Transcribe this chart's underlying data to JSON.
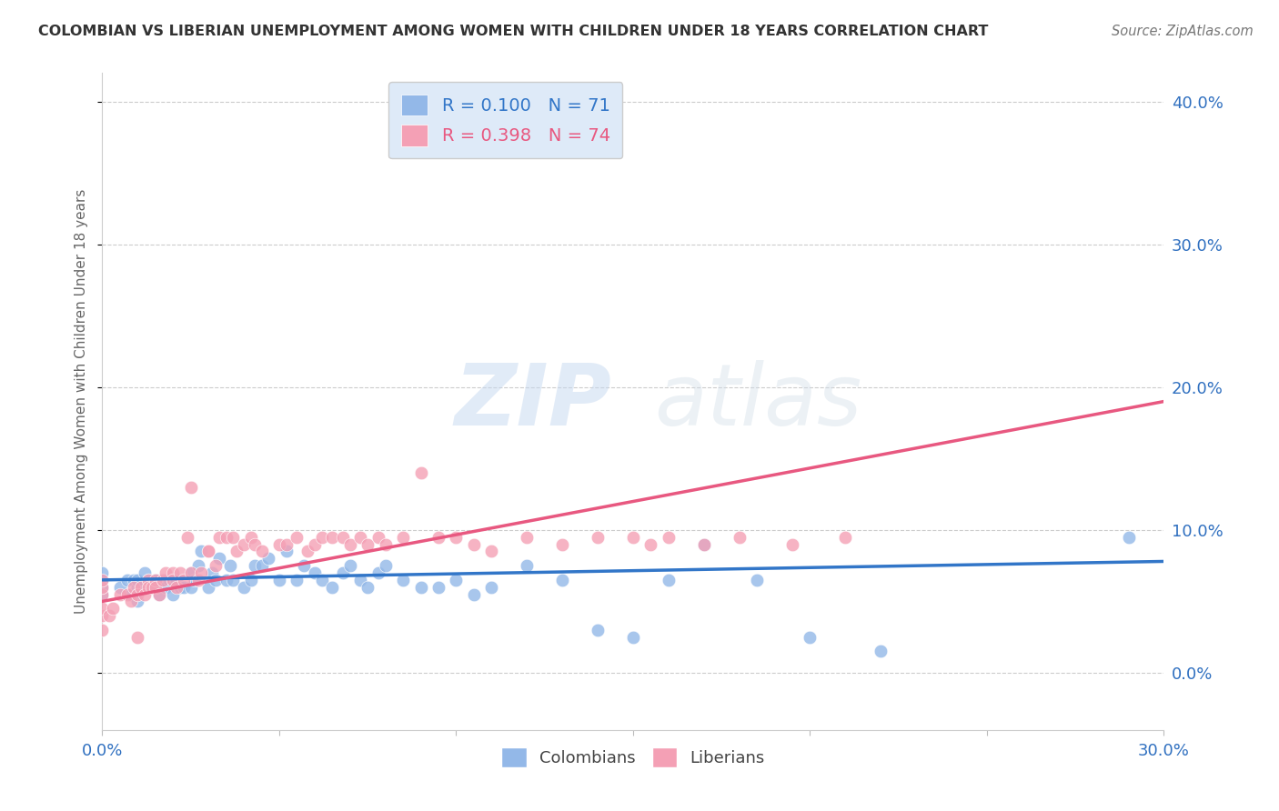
{
  "title": "COLOMBIAN VS LIBERIAN UNEMPLOYMENT AMONG WOMEN WITH CHILDREN UNDER 18 YEARS CORRELATION CHART",
  "source": "Source: ZipAtlas.com",
  "ylabel": "Unemployment Among Women with Children Under 18 years",
  "xlim": [
    0.0,
    0.3
  ],
  "ylim": [
    -0.04,
    0.42
  ],
  "xticks": [
    0.0,
    0.05,
    0.1,
    0.15,
    0.2,
    0.25,
    0.3
  ],
  "yticks": [
    0.0,
    0.1,
    0.2,
    0.3,
    0.4
  ],
  "ytick_labels_right": [
    "0.0%",
    "10.0%",
    "20.0%",
    "30.0%",
    "40.0%"
  ],
  "xtick_labels": [
    "0.0%",
    "",
    "",
    "",
    "",
    "",
    "30.0%"
  ],
  "watermark_zip": "ZIP",
  "watermark_atlas": "atlas",
  "colombian_R": 0.1,
  "colombian_N": 71,
  "liberian_R": 0.398,
  "liberian_N": 74,
  "colombian_color": "#93b8e8",
  "liberian_color": "#f4a0b5",
  "colombian_line_color": "#3276c8",
  "liberian_line_color": "#e85880",
  "legend_box_facecolor": "#deeaf8",
  "colombian_x": [
    0.0,
    0.0,
    0.0,
    0.0,
    0.005,
    0.007,
    0.008,
    0.009,
    0.01,
    0.01,
    0.01,
    0.012,
    0.013,
    0.014,
    0.015,
    0.016,
    0.017,
    0.018,
    0.018,
    0.019,
    0.02,
    0.02,
    0.021,
    0.022,
    0.023,
    0.025,
    0.025,
    0.026,
    0.027,
    0.028,
    0.03,
    0.031,
    0.032,
    0.033,
    0.035,
    0.036,
    0.037,
    0.04,
    0.042,
    0.043,
    0.045,
    0.047,
    0.05,
    0.052,
    0.055,
    0.057,
    0.06,
    0.062,
    0.065,
    0.068,
    0.07,
    0.073,
    0.075,
    0.078,
    0.08,
    0.085,
    0.09,
    0.095,
    0.1,
    0.105,
    0.11,
    0.12,
    0.13,
    0.14,
    0.15,
    0.16,
    0.17,
    0.185,
    0.2,
    0.22,
    0.29
  ],
  "colombian_y": [
    0.055,
    0.06,
    0.065,
    0.07,
    0.06,
    0.065,
    0.055,
    0.065,
    0.05,
    0.06,
    0.065,
    0.07,
    0.065,
    0.06,
    0.065,
    0.055,
    0.065,
    0.065,
    0.06,
    0.065,
    0.055,
    0.065,
    0.065,
    0.06,
    0.06,
    0.06,
    0.07,
    0.065,
    0.075,
    0.085,
    0.06,
    0.07,
    0.065,
    0.08,
    0.065,
    0.075,
    0.065,
    0.06,
    0.065,
    0.075,
    0.075,
    0.08,
    0.065,
    0.085,
    0.065,
    0.075,
    0.07,
    0.065,
    0.06,
    0.07,
    0.075,
    0.065,
    0.06,
    0.07,
    0.075,
    0.065,
    0.06,
    0.06,
    0.065,
    0.055,
    0.06,
    0.075,
    0.065,
    0.03,
    0.025,
    0.065,
    0.09,
    0.065,
    0.025,
    0.015,
    0.095
  ],
  "liberian_x": [
    0.0,
    0.0,
    0.0,
    0.0,
    0.0,
    0.0,
    0.002,
    0.003,
    0.005,
    0.007,
    0.008,
    0.009,
    0.01,
    0.01,
    0.011,
    0.012,
    0.013,
    0.013,
    0.014,
    0.015,
    0.015,
    0.016,
    0.017,
    0.018,
    0.02,
    0.02,
    0.021,
    0.022,
    0.023,
    0.024,
    0.025,
    0.025,
    0.027,
    0.028,
    0.03,
    0.03,
    0.032,
    0.033,
    0.035,
    0.037,
    0.038,
    0.04,
    0.042,
    0.043,
    0.045,
    0.05,
    0.052,
    0.055,
    0.058,
    0.06,
    0.062,
    0.065,
    0.068,
    0.07,
    0.073,
    0.075,
    0.078,
    0.08,
    0.085,
    0.09,
    0.095,
    0.1,
    0.105,
    0.11,
    0.12,
    0.13,
    0.14,
    0.15,
    0.155,
    0.16,
    0.17,
    0.18,
    0.195,
    0.21
  ],
  "liberian_y": [
    0.03,
    0.04,
    0.045,
    0.055,
    0.06,
    0.065,
    0.04,
    0.045,
    0.055,
    0.055,
    0.05,
    0.06,
    0.025,
    0.055,
    0.06,
    0.055,
    0.065,
    0.06,
    0.06,
    0.065,
    0.06,
    0.055,
    0.065,
    0.07,
    0.07,
    0.065,
    0.06,
    0.07,
    0.065,
    0.095,
    0.13,
    0.07,
    0.065,
    0.07,
    0.085,
    0.085,
    0.075,
    0.095,
    0.095,
    0.095,
    0.085,
    0.09,
    0.095,
    0.09,
    0.085,
    0.09,
    0.09,
    0.095,
    0.085,
    0.09,
    0.095,
    0.095,
    0.095,
    0.09,
    0.095,
    0.09,
    0.095,
    0.09,
    0.095,
    0.14,
    0.095,
    0.095,
    0.09,
    0.085,
    0.095,
    0.09,
    0.095,
    0.095,
    0.09,
    0.095,
    0.09,
    0.095,
    0.09,
    0.095
  ]
}
